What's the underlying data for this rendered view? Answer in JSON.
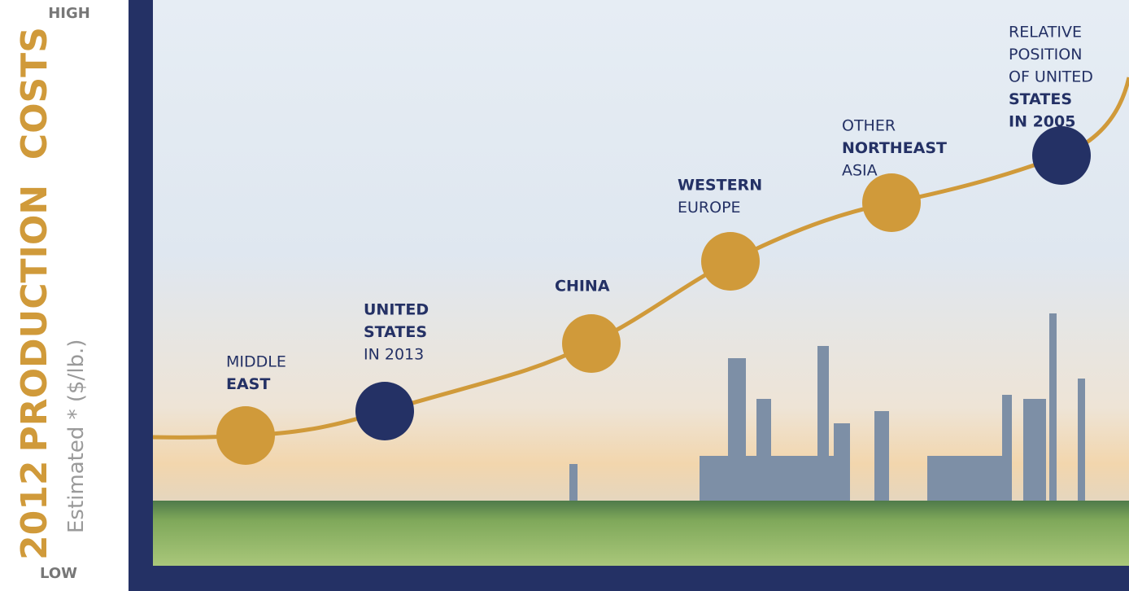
{
  "axis": {
    "high": "HIGH",
    "low": "LOW",
    "title_year": "2012",
    "title_main": "PRODUCTION  COSTS",
    "subtitle": "Estimated * ($/lb.)"
  },
  "nodes": [
    {
      "color": "#d09a3a",
      "lines": [
        {
          "text": "MIDDLE",
          "bold": false
        },
        {
          "text": "EAST",
          "bold": true
        }
      ]
    },
    {
      "color": "#243165",
      "lines": [
        {
          "text": "UNITED",
          "bold": true
        },
        {
          "text": "STATES",
          "bold": true
        },
        {
          "text": "IN 2013",
          "bold": false
        }
      ]
    },
    {
      "color": "#d09a3a",
      "lines": [
        {
          "text": "CHINA",
          "bold": true
        }
      ]
    },
    {
      "color": "#d09a3a",
      "lines": [
        {
          "text": "WESTERN",
          "bold": true
        },
        {
          "text": "EUROPE",
          "bold": false
        }
      ]
    },
    {
      "color": "#d09a3a",
      "lines": [
        {
          "text": "OTHER",
          "bold": false
        },
        {
          "text": "NORTHEAST",
          "bold": true
        },
        {
          "text": "ASIA",
          "bold": false
        }
      ]
    },
    {
      "color": "#243165",
      "lines": [
        {
          "text": "RELATIVE",
          "bold": false
        },
        {
          "text": "POSITION",
          "bold": false
        },
        {
          "text": "OF UNITED",
          "bold": false
        },
        {
          "text": "STATES",
          "bold": true
        },
        {
          "text": "IN 2005",
          "bold": true
        }
      ]
    }
  ]
}
